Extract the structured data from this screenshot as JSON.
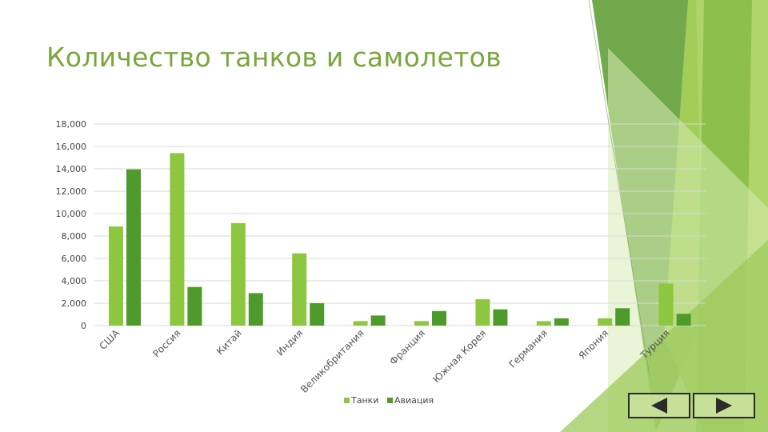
{
  "title": "Количество танков и самолетов",
  "colors": {
    "title": "#7aa63c",
    "tanks": "#8dc63f",
    "aviation": "#4e9a2a",
    "grid": "#d9d9d9",
    "decor_light": "#a6d05a",
    "decor_dark": "#5b9a2e"
  },
  "navigation": {
    "prev_icon": "triangle-left-icon",
    "next_icon": "triangle-right-icon"
  },
  "chart_data": {
    "type": "bar",
    "title": "",
    "xlabel": "",
    "ylabel": "",
    "ylim": [
      0,
      18000
    ],
    "y_ticks": [
      "0",
      "2,000",
      "4,000",
      "6,000",
      "8,000",
      "10,000",
      "12,000",
      "14,000",
      "16,000",
      "18,000"
    ],
    "grid": true,
    "legend_position": "bottom",
    "categories": [
      "США",
      "Россия",
      "Китай",
      "Индия",
      "Великобритания",
      "Франция",
      "Южная Корея",
      "Германия",
      "Япония",
      "Турция"
    ],
    "series": [
      {
        "name": "Танки",
        "values": [
          8850,
          15400,
          9150,
          6450,
          400,
          400,
          2350,
          400,
          650,
          3750
        ]
      },
      {
        "name": "Авиация",
        "values": [
          13950,
          3450,
          2900,
          2000,
          900,
          1300,
          1450,
          650,
          1550,
          1050
        ]
      }
    ]
  }
}
